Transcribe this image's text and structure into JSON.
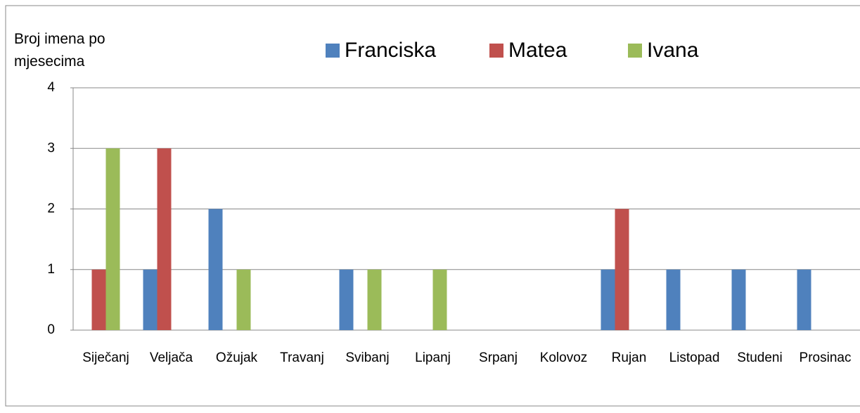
{
  "chart_data": {
    "type": "bar",
    "y_title": "Broj imena po mjesecima",
    "categories": [
      "Siječanj",
      "Veljača",
      "Ožujak",
      "Travanj",
      "Svibanj",
      "Lipanj",
      "Srpanj",
      "Kolovoz",
      "Rujan",
      "Listopad",
      "Studeni",
      "Prosinac"
    ],
    "series": [
      {
        "name": "Franciska",
        "color": "#4f81bd",
        "values": [
          0,
          1,
          2,
          0,
          1,
          0,
          0,
          0,
          1,
          1,
          1,
          1
        ]
      },
      {
        "name": "Matea",
        "color": "#c0504d",
        "values": [
          1,
          3,
          0,
          0,
          0,
          0,
          0,
          0,
          2,
          0,
          0,
          0
        ]
      },
      {
        "name": "Ivana",
        "color": "#9bbb59",
        "values": [
          3,
          0,
          1,
          0,
          1,
          1,
          0,
          0,
          0,
          0,
          0,
          0
        ]
      }
    ],
    "ylim": [
      0,
      4
    ],
    "yticks": [
      0,
      1,
      2,
      3,
      4
    ],
    "grid": true,
    "legend": "top"
  }
}
